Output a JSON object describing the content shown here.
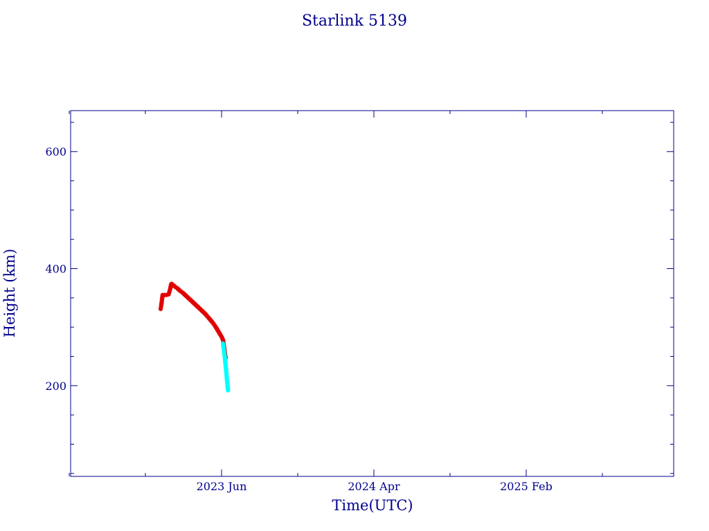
{
  "chart_data": {
    "type": "scatter",
    "title": "Starlink 5139",
    "xlabel": "Time(UTC)",
    "ylabel": "Height (km)",
    "x_ticks": [
      "2023 Jun",
      "2024 Apr",
      "2025 Feb"
    ],
    "y_ticks": [
      200,
      400,
      600
    ],
    "ylim": [
      45,
      670
    ],
    "grid": false,
    "colors": {
      "axis": "#00008b",
      "series_main": "#e00000",
      "series_late": "#00ffff"
    },
    "series": [
      {
        "color": "#e00000",
        "marker": "asterisk",
        "points": [
          [
            "2023-01-30",
            331
          ],
          [
            "2023-01-31",
            336
          ],
          [
            "2023-02-01",
            342
          ],
          [
            "2023-02-02",
            349
          ],
          [
            "2023-02-03",
            355
          ],
          [
            "2023-02-07",
            355
          ],
          [
            "2023-02-11",
            355
          ],
          [
            "2023-02-15",
            356
          ],
          [
            "2023-02-18",
            365
          ],
          [
            "2023-02-20",
            373
          ],
          [
            "2023-02-21",
            374
          ],
          [
            "2023-02-24",
            372
          ],
          [
            "2023-02-28",
            369
          ],
          [
            "2023-03-05",
            366
          ],
          [
            "2023-03-10",
            362
          ],
          [
            "2023-03-15",
            359
          ],
          [
            "2023-03-20",
            355
          ],
          [
            "2023-03-25",
            351
          ],
          [
            "2023-03-30",
            347
          ],
          [
            "2023-04-04",
            343
          ],
          [
            "2023-04-09",
            339
          ],
          [
            "2023-04-14",
            335
          ],
          [
            "2023-04-19",
            331
          ],
          [
            "2023-04-24",
            327
          ],
          [
            "2023-04-29",
            323
          ],
          [
            "2023-05-04",
            318
          ],
          [
            "2023-05-09",
            313
          ],
          [
            "2023-05-14",
            308
          ],
          [
            "2023-05-19",
            302
          ],
          [
            "2023-05-24",
            295
          ],
          [
            "2023-05-29",
            288
          ],
          [
            "2023-06-02",
            282
          ],
          [
            "2023-06-04",
            278
          ],
          [
            "2023-06-09",
            247
          ]
        ]
      },
      {
        "color": "#00ffff",
        "marker": "asterisk",
        "points": [
          [
            "2023-06-04",
            272
          ],
          [
            "2023-06-05",
            265
          ],
          [
            "2023-06-06",
            258
          ],
          [
            "2023-06-07",
            252
          ],
          [
            "2023-06-08",
            244
          ],
          [
            "2023-06-09",
            236
          ],
          [
            "2023-06-10",
            228
          ],
          [
            "2023-06-11",
            218
          ],
          [
            "2023-06-12",
            208
          ],
          [
            "2023-06-13",
            200
          ],
          [
            "2023-06-14",
            192
          ]
        ]
      }
    ]
  }
}
